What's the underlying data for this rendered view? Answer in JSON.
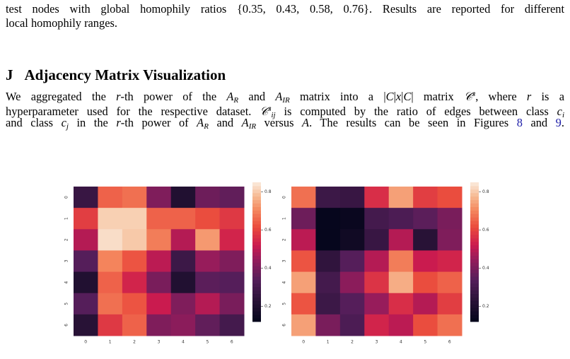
{
  "text": {
    "intro_lines": [
      "test nodes with global homophily ratios {0.35, 0.43, 0.58, 0.76}. Results are reported for different",
      "local homophily ranges."
    ],
    "section_number": "J",
    "section_title": "Adjacency Matrix Visualization",
    "paragraph_lines": [
      [
        {
          "t": "We aggregated the "
        },
        {
          "t": "r",
          "s": "i"
        },
        {
          "t": "-th power of the "
        },
        {
          "t": "A",
          "s": "i"
        },
        {
          "t": "R",
          "s": "sub"
        },
        {
          "t": " and "
        },
        {
          "t": "A",
          "s": "i"
        },
        {
          "t": "IR",
          "s": "sub"
        },
        {
          "t": " matrix into a |"
        },
        {
          "t": "C",
          "s": "i"
        },
        {
          "t": "|"
        },
        {
          "t": "x",
          "s": "i"
        },
        {
          "t": "|"
        },
        {
          "t": "C",
          "s": "i"
        },
        {
          "t": "| matrix "
        },
        {
          "t": "𝒞",
          "s": "i"
        },
        {
          "t": "s",
          "s": "sup"
        },
        {
          "t": ", where "
        },
        {
          "t": "r",
          "s": "i"
        },
        {
          "t": " is a"
        }
      ],
      [
        {
          "t": "hyperparameter used for the respective dataset. "
        },
        {
          "t": "𝒞",
          "s": "i"
        },
        {
          "t": "s",
          "s": "sup"
        },
        {
          "t": "ij",
          "s": "sub"
        },
        {
          "t": " is computed by the ratio of edges between class "
        },
        {
          "t": "c",
          "s": "i"
        },
        {
          "t": "i",
          "s": "sub"
        }
      ],
      [
        {
          "t": "and class "
        },
        {
          "t": "c",
          "s": "i"
        },
        {
          "t": "j",
          "s": "sub"
        },
        {
          "t": " in the "
        },
        {
          "t": "r",
          "s": "i"
        },
        {
          "t": "-th power of "
        },
        {
          "t": "A",
          "s": "i"
        },
        {
          "t": "R",
          "s": "sub"
        },
        {
          "t": " and "
        },
        {
          "t": "A",
          "s": "i"
        },
        {
          "t": "IR",
          "s": "sub"
        },
        {
          "t": " versus "
        },
        {
          "t": "A",
          "s": "i"
        },
        {
          "t": ". The results can be seen in Figures "
        },
        {
          "t": "8",
          "s": "link"
        },
        {
          "t": " and "
        },
        {
          "t": "9",
          "s": "link"
        },
        {
          "t": "."
        }
      ]
    ]
  },
  "chart_data": [
    {
      "type": "heatmap",
      "colormap": "rocket",
      "x_categories": [
        "0",
        "1",
        "2",
        "3",
        "4",
        "5",
        "6"
      ],
      "y_categories": [
        "0",
        "1",
        "2",
        "3",
        "4",
        "5",
        "6"
      ],
      "values": [
        [
          0.27,
          0.65,
          0.67,
          0.41,
          0.21,
          0.38,
          0.36
        ],
        [
          0.59,
          0.81,
          0.81,
          0.65,
          0.65,
          0.62,
          0.58
        ],
        [
          0.49,
          0.83,
          0.8,
          0.69,
          0.49,
          0.73,
          0.54
        ],
        [
          0.34,
          0.7,
          0.63,
          0.5,
          0.28,
          0.45,
          0.41
        ],
        [
          0.21,
          0.65,
          0.54,
          0.4,
          0.21,
          0.35,
          0.34
        ],
        [
          0.34,
          0.67,
          0.63,
          0.52,
          0.41,
          0.49,
          0.4
        ],
        [
          0.23,
          0.58,
          0.65,
          0.41,
          0.43,
          0.36,
          0.3
        ]
      ],
      "clim": [
        0.12,
        0.85
      ],
      "cticks": [
        0.2,
        0.4,
        0.6,
        0.8
      ]
    },
    {
      "type": "heatmap",
      "colormap": "rocket",
      "x_categories": [
        "0",
        "1",
        "2",
        "3",
        "4",
        "5",
        "6"
      ],
      "y_categories": [
        "0",
        "1",
        "2",
        "3",
        "4",
        "5",
        "6"
      ],
      "values": [
        [
          0.67,
          0.28,
          0.27,
          0.56,
          0.74,
          0.59,
          0.62
        ],
        [
          0.38,
          0.13,
          0.14,
          0.3,
          0.32,
          0.35,
          0.4
        ],
        [
          0.5,
          0.13,
          0.16,
          0.27,
          0.49,
          0.23,
          0.41
        ],
        [
          0.63,
          0.25,
          0.34,
          0.49,
          0.69,
          0.52,
          0.54
        ],
        [
          0.74,
          0.3,
          0.43,
          0.57,
          0.76,
          0.62,
          0.65
        ],
        [
          0.63,
          0.28,
          0.34,
          0.45,
          0.56,
          0.49,
          0.59
        ],
        [
          0.74,
          0.4,
          0.32,
          0.54,
          0.5,
          0.62,
          0.67
        ]
      ],
      "clim": [
        0.12,
        0.85
      ],
      "cticks": [
        0.2,
        0.4,
        0.6,
        0.8
      ]
    }
  ]
}
